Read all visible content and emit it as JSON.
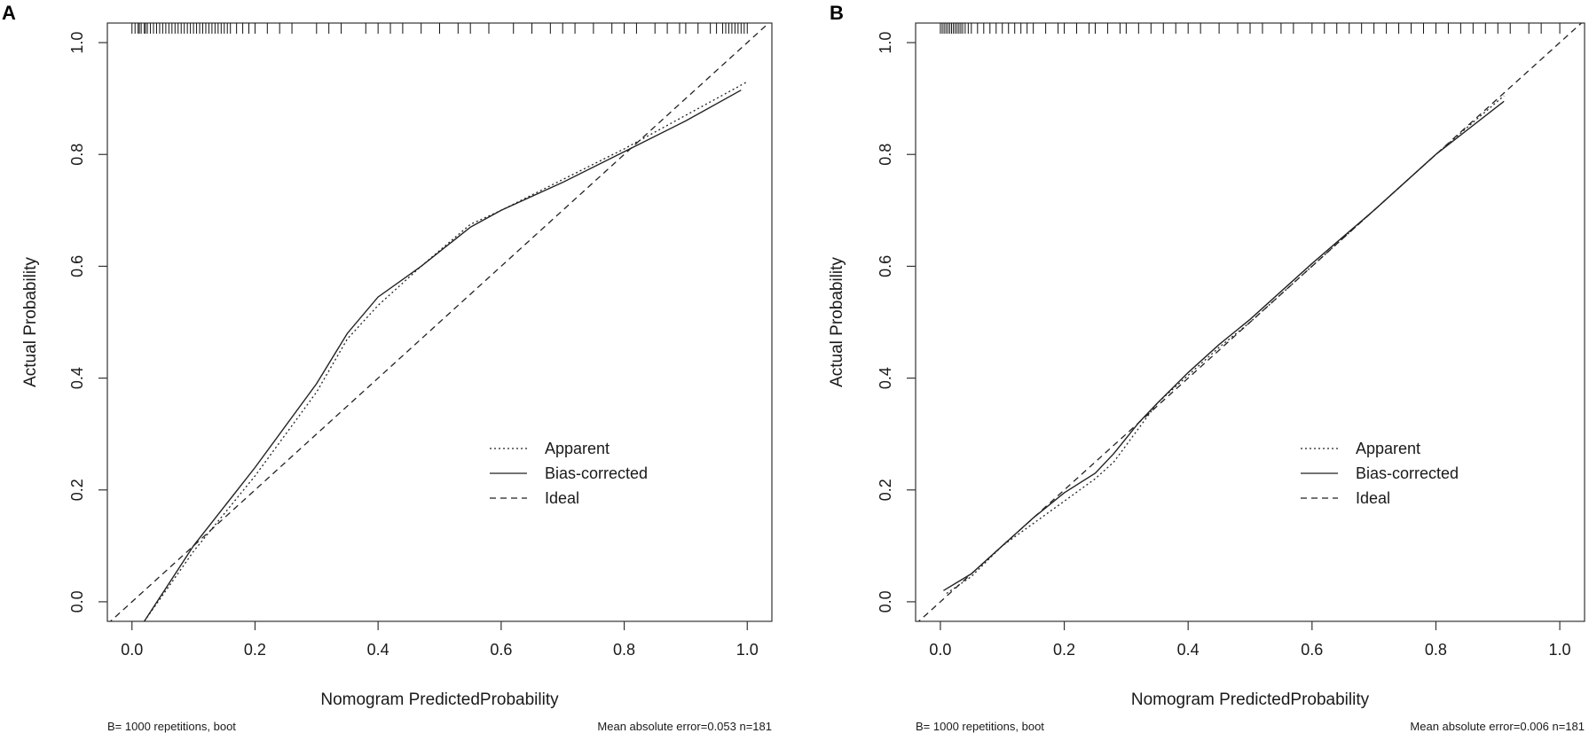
{
  "chart_data": [
    {
      "panel": "A",
      "type": "line",
      "xlabel": "Nomogram PredictedProbability",
      "ylabel": "Actual Probability",
      "xlim": [
        -0.04,
        1.04
      ],
      "ylim": [
        -0.035,
        1.035
      ],
      "xticks": [
        "0.0",
        "0.2",
        "0.4",
        "0.6",
        "0.8",
        "1.0"
      ],
      "yticks": [
        "0.0",
        "0.2",
        "0.4",
        "0.6",
        "0.8",
        "1.0"
      ],
      "legend": {
        "position": "center-right",
        "entries": [
          "Apparent",
          "Bias-corrected",
          "Ideal"
        ]
      },
      "footnote_left": "B= 1000 repetitions, boot",
      "footnote_right": "Mean absolute error=0.053 n=181",
      "series": [
        {
          "name": "Apparent",
          "style": "dotted",
          "x": [
            0.02,
            0.1,
            0.2,
            0.3,
            0.35,
            0.4,
            0.47,
            0.55,
            0.6,
            0.7,
            0.8,
            0.9,
            1.0
          ],
          "y": [
            -0.035,
            0.09,
            0.225,
            0.375,
            0.47,
            0.53,
            0.6,
            0.675,
            0.7,
            0.755,
            0.81,
            0.87,
            0.93
          ]
        },
        {
          "name": "Bias-corrected",
          "style": "solid",
          "x": [
            0.02,
            0.1,
            0.2,
            0.3,
            0.35,
            0.4,
            0.47,
            0.55,
            0.6,
            0.7,
            0.8,
            0.9,
            0.99
          ],
          "y": [
            -0.035,
            0.1,
            0.24,
            0.39,
            0.48,
            0.545,
            0.6,
            0.67,
            0.7,
            0.75,
            0.805,
            0.86,
            0.915
          ]
        },
        {
          "name": "Ideal",
          "style": "dashed",
          "x": [
            -0.04,
            1.04
          ],
          "y": [
            -0.04,
            1.04
          ]
        }
      ],
      "rug_x": [
        0.0,
        0.005,
        0.01,
        0.012,
        0.015,
        0.02,
        0.022,
        0.025,
        0.03,
        0.035,
        0.04,
        0.045,
        0.05,
        0.055,
        0.06,
        0.065,
        0.07,
        0.075,
        0.08,
        0.085,
        0.09,
        0.095,
        0.1,
        0.105,
        0.11,
        0.115,
        0.12,
        0.125,
        0.13,
        0.135,
        0.14,
        0.145,
        0.15,
        0.155,
        0.16,
        0.17,
        0.18,
        0.19,
        0.2,
        0.22,
        0.24,
        0.26,
        0.3,
        0.32,
        0.34,
        0.38,
        0.4,
        0.42,
        0.44,
        0.47,
        0.5,
        0.53,
        0.55,
        0.58,
        0.62,
        0.65,
        0.68,
        0.7,
        0.72,
        0.75,
        0.78,
        0.8,
        0.82,
        0.85,
        0.87,
        0.89,
        0.9,
        0.92,
        0.94,
        0.95,
        0.96,
        0.965,
        0.97,
        0.975,
        0.98,
        0.985,
        0.99,
        0.995,
        1.0
      ]
    },
    {
      "panel": "B",
      "type": "line",
      "xlabel": "Nomogram PredictedProbability",
      "ylabel": "Actual Probability",
      "xlim": [
        -0.04,
        1.04
      ],
      "ylim": [
        -0.035,
        1.035
      ],
      "xticks": [
        "0.0",
        "0.2",
        "0.4",
        "0.6",
        "0.8",
        "1.0"
      ],
      "yticks": [
        "0.0",
        "0.2",
        "0.4",
        "0.6",
        "0.8",
        "1.0"
      ],
      "legend": {
        "position": "center-right",
        "entries": [
          "Apparent",
          "Bias-corrected",
          "Ideal"
        ]
      },
      "footnote_left": "B= 1000 repetitions, boot",
      "footnote_right": "Mean absolute error=0.006 n=181",
      "series": [
        {
          "name": "Apparent",
          "style": "dotted",
          "x": [
            0.01,
            0.05,
            0.1,
            0.15,
            0.2,
            0.25,
            0.28,
            0.32,
            0.35,
            0.4,
            0.45,
            0.5,
            0.6,
            0.7,
            0.8,
            0.91
          ],
          "y": [
            0.015,
            0.045,
            0.1,
            0.14,
            0.18,
            0.22,
            0.25,
            0.31,
            0.355,
            0.405,
            0.455,
            0.5,
            0.6,
            0.7,
            0.8,
            0.905
          ]
        },
        {
          "name": "Bias-corrected",
          "style": "solid",
          "x": [
            0.005,
            0.05,
            0.1,
            0.15,
            0.2,
            0.25,
            0.28,
            0.32,
            0.35,
            0.4,
            0.45,
            0.5,
            0.6,
            0.7,
            0.8,
            0.91
          ],
          "y": [
            0.02,
            0.05,
            0.1,
            0.15,
            0.195,
            0.23,
            0.265,
            0.32,
            0.355,
            0.41,
            0.46,
            0.505,
            0.605,
            0.7,
            0.8,
            0.895
          ]
        },
        {
          "name": "Ideal",
          "style": "dashed",
          "x": [
            -0.04,
            1.04
          ],
          "y": [
            -0.04,
            1.04
          ]
        }
      ],
      "rug_x": [
        0.0,
        0.003,
        0.006,
        0.009,
        0.012,
        0.015,
        0.018,
        0.021,
        0.024,
        0.027,
        0.03,
        0.033,
        0.036,
        0.04,
        0.045,
        0.05,
        0.06,
        0.07,
        0.08,
        0.09,
        0.1,
        0.11,
        0.12,
        0.13,
        0.14,
        0.15,
        0.17,
        0.19,
        0.2,
        0.22,
        0.24,
        0.25,
        0.27,
        0.29,
        0.3,
        0.32,
        0.34,
        0.36,
        0.38,
        0.4,
        0.42,
        0.45,
        0.48,
        0.5,
        0.52,
        0.55,
        0.57,
        0.6,
        0.62,
        0.64,
        0.66,
        0.68,
        0.7,
        0.72,
        0.74,
        0.76,
        0.78,
        0.8,
        0.82,
        0.84,
        0.86,
        0.88,
        0.9,
        0.92,
        0.95,
        0.97,
        1.0
      ]
    }
  ],
  "panels": [
    "A",
    "B"
  ]
}
